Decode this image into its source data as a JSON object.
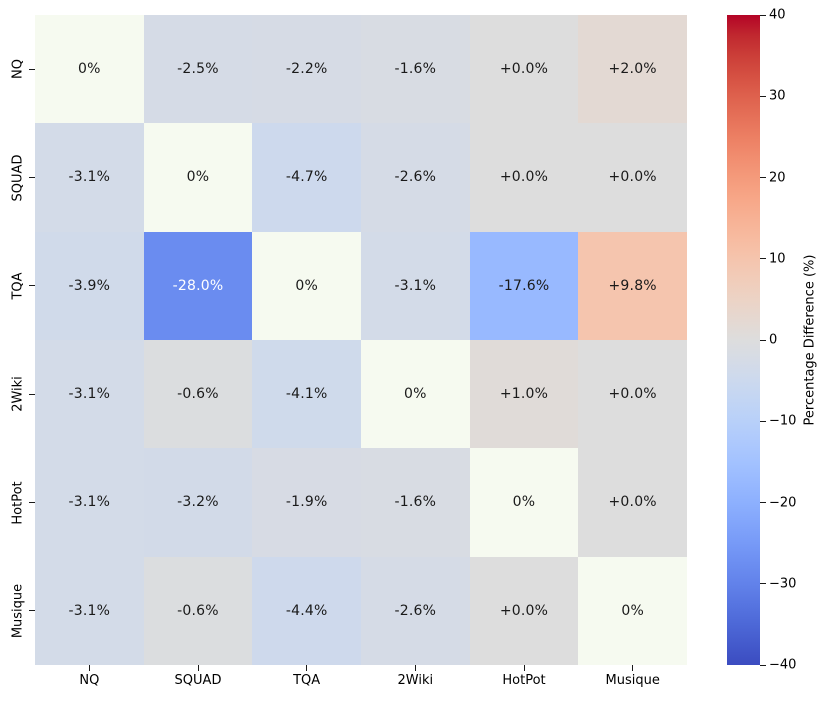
{
  "chart_data": {
    "type": "heatmap",
    "title": "",
    "x_categories": [
      "NQ",
      "SQUAD",
      "TQA",
      "2Wiki",
      "HotPot",
      "Musique"
    ],
    "y_categories": [
      "NQ",
      "SQUAD",
      "TQA",
      "2Wiki",
      "HotPot",
      "Musique"
    ],
    "cell_labels": [
      [
        "0%",
        "-2.5%",
        "-2.2%",
        "-1.6%",
        "+0.0%",
        "+2.0%"
      ],
      [
        "-3.1%",
        "0%",
        "-4.7%",
        "-2.6%",
        "+0.0%",
        "+0.0%"
      ],
      [
        "-3.9%",
        "-28.0%",
        "0%",
        "-3.1%",
        "-17.6%",
        "+9.8%"
      ],
      [
        "-3.1%",
        "-0.6%",
        "-4.1%",
        "0%",
        "+1.0%",
        "+0.0%"
      ],
      [
        "-3.1%",
        "-3.2%",
        "-1.9%",
        "-1.6%",
        "0%",
        "+0.0%"
      ],
      [
        "-3.1%",
        "-0.6%",
        "-4.4%",
        "-2.6%",
        "+0.0%",
        "0%"
      ]
    ],
    "values": [
      [
        0,
        -2.5,
        -2.2,
        -1.6,
        0.0,
        2.0
      ],
      [
        -3.1,
        0,
        -4.7,
        -2.6,
        0.0,
        0.0
      ],
      [
        -3.9,
        -28.0,
        0,
        -3.1,
        -17.6,
        9.8
      ],
      [
        -3.1,
        -0.6,
        -4.1,
        0,
        1.0,
        0.0
      ],
      [
        -3.1,
        -3.2,
        -1.9,
        -1.6,
        0,
        0.0
      ],
      [
        -3.1,
        -0.6,
        -4.4,
        -2.6,
        0.0,
        0
      ]
    ],
    "diagonal_color": "#f6faf0",
    "colormap": {
      "name": "coolwarm",
      "vmin": -40,
      "vmax": 40,
      "stops": [
        "#3b4cc0",
        "#445acc",
        "#4d68d7",
        "#5775e1",
        "#6282ea",
        "#6c8ef1",
        "#779af7",
        "#82a5fb",
        "#8db0fe",
        "#98b9ff",
        "#a3c2ff",
        "#aec9fd",
        "#b8d0f9",
        "#c2d5f4",
        "#ccd9ee",
        "#d5dbe6",
        "#dddddd",
        "#e5d8d1",
        "#ecd3c5",
        "#f1ccb9",
        "#f5c4ad",
        "#f7bba0",
        "#f7b194",
        "#f7a687",
        "#f49a7b",
        "#f18d6f",
        "#ec7f63",
        "#e57058",
        "#de614d",
        "#d55042",
        "#cb3e38",
        "#c0282f",
        "#b40426"
      ]
    },
    "text_colors": {
      "dark": "#1a1a1a",
      "light": "#ffffff"
    },
    "colorbar": {
      "label": "Percentage Difference (%)",
      "tick_values": [
        40,
        30,
        20,
        10,
        0,
        -10,
        -20,
        -30,
        -40
      ],
      "tick_labels": [
        "40",
        "30",
        "20",
        "10",
        "0",
        "−10",
        "−20",
        "−30",
        "−40"
      ]
    },
    "axis_ranges": {
      "grid": false,
      "legend": "colorbar-right"
    }
  }
}
